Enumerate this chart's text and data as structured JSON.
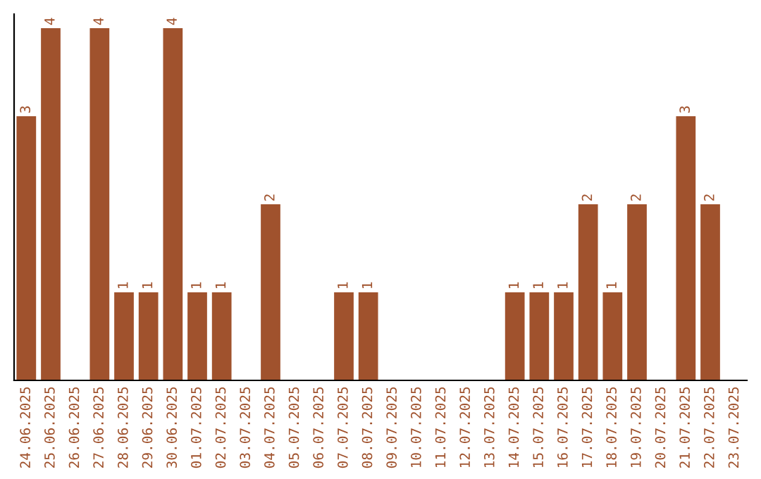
{
  "chart_data": {
    "type": "bar",
    "categories": [
      "24.06.2025",
      "25.06.2025",
      "26.06.2025",
      "27.06.2025",
      "28.06.2025",
      "29.06.2025",
      "30.06.2025",
      "01.07.2025",
      "02.07.2025",
      "03.07.2025",
      "04.07.2025",
      "05.07.2025",
      "06.07.2025",
      "07.07.2025",
      "08.07.2025",
      "09.07.2025",
      "10.07.2025",
      "11.07.2025",
      "12.07.2025",
      "13.07.2025",
      "14.07.2025",
      "15.07.2025",
      "16.07.2025",
      "17.07.2025",
      "18.07.2025",
      "19.07.2025",
      "20.07.2025",
      "21.07.2025",
      "22.07.2025",
      "23.07.2025"
    ],
    "values": [
      3,
      4,
      0,
      4,
      1,
      1,
      4,
      1,
      1,
      0,
      2,
      0,
      0,
      1,
      1,
      0,
      0,
      0,
      0,
      0,
      1,
      1,
      1,
      2,
      1,
      2,
      0,
      3,
      2,
      0
    ],
    "value_labels": [
      "3",
      "4",
      null,
      "4",
      "1",
      "1",
      "4",
      "1",
      "1",
      null,
      "2",
      null,
      null,
      "1",
      "1",
      null,
      null,
      null,
      null,
      null,
      "1",
      "1",
      "1",
      "2",
      "1",
      "2",
      null,
      "3",
      "2",
      null
    ],
    "color": "#a0522d",
    "ylim": [
      0,
      4.16
    ],
    "tick_labels": "x",
    "grid": false,
    "legend": false
  }
}
